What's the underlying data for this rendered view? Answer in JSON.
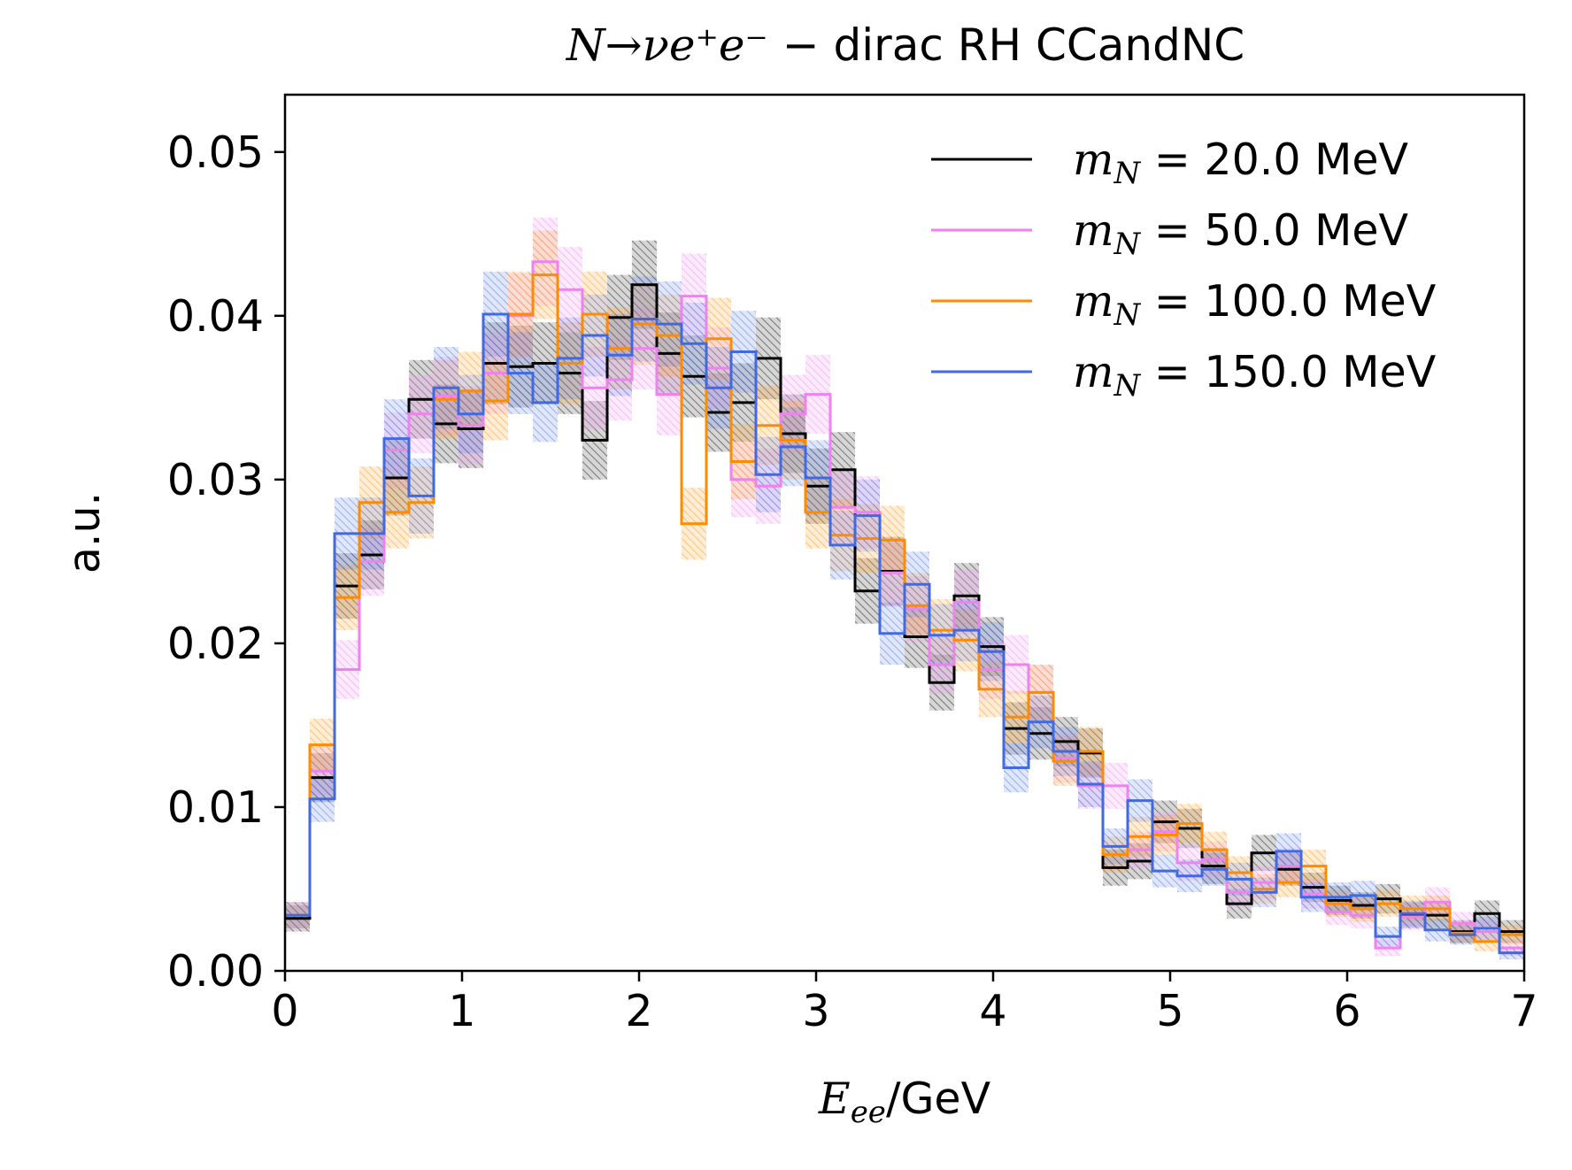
{
  "chart_data": {
    "type": "histogram-step",
    "title": {
      "math_part": "N→νe⁺e⁻",
      "text_part": " − dirac RH CCandNC"
    },
    "xlabel": {
      "math": "E",
      "sub": "ee",
      "rest": "/GeV"
    },
    "ylabel": "a.u.",
    "xlim": [
      0,
      7
    ],
    "ylim": [
      0,
      0.0535
    ],
    "xticks": [
      0,
      1,
      2,
      3,
      4,
      5,
      6,
      7
    ],
    "xtick_labels": [
      "0",
      "1",
      "2",
      "3",
      "4",
      "5",
      "6",
      "7"
    ],
    "yticks": [
      0.0,
      0.01,
      0.02,
      0.03,
      0.04,
      0.05
    ],
    "ytick_labels": [
      "0.00",
      "0.01",
      "0.02",
      "0.03",
      "0.04",
      "0.05"
    ],
    "bin_edges": [
      0.0,
      0.14,
      0.28,
      0.42,
      0.56,
      0.7,
      0.84,
      0.98,
      1.12,
      1.26,
      1.4,
      1.54,
      1.68,
      1.82,
      1.96,
      2.1,
      2.24,
      2.38,
      2.52,
      2.66,
      2.8,
      2.94,
      3.08,
      3.22,
      3.36,
      3.5,
      3.64,
      3.78,
      3.92,
      4.06,
      4.2,
      4.34,
      4.48,
      4.62,
      4.76,
      4.9,
      5.04,
      5.18,
      5.32,
      5.46,
      5.6,
      5.74,
      5.88,
      6.02,
      6.16,
      6.3,
      6.44,
      6.58,
      6.72,
      6.86,
      7.0
    ],
    "legend_position": "top-right",
    "series": [
      {
        "name_math": "m",
        "name_sub": "N",
        "name_rest": " = 20.0 MeV",
        "color": "#000000",
        "values": [
          0.0032,
          0.0118,
          0.0235,
          0.0254,
          0.0301,
          0.0349,
          0.0334,
          0.0331,
          0.0371,
          0.0369,
          0.0371,
          0.0365,
          0.0324,
          0.0399,
          0.0419,
          0.0377,
          0.0363,
          0.0341,
          0.0347,
          0.0374,
          0.0328,
          0.0296,
          0.0306,
          0.0232,
          0.0244,
          0.0204,
          0.0176,
          0.0229,
          0.0198,
          0.0148,
          0.0145,
          0.014,
          0.0133,
          0.0063,
          0.0067,
          0.0091,
          0.0087,
          0.0064,
          0.0041,
          0.0072,
          0.0062,
          0.0051,
          0.0043,
          0.004,
          0.0044,
          0.0034,
          0.0034,
          0.0024,
          0.0035,
          0.0024
        ],
        "errors": [
          0.0008,
          0.0015,
          0.002,
          0.0021,
          0.0023,
          0.0024,
          0.0024,
          0.0024,
          0.0025,
          0.0025,
          0.0025,
          0.0025,
          0.0024,
          0.0026,
          0.0027,
          0.0025,
          0.0025,
          0.0024,
          0.0024,
          0.0025,
          0.0024,
          0.0023,
          0.0023,
          0.002,
          0.0021,
          0.0019,
          0.0017,
          0.002,
          0.0018,
          0.0016,
          0.0016,
          0.0015,
          0.0015,
          0.0011,
          0.0011,
          0.0013,
          0.0012,
          0.0011,
          0.0009,
          0.0011,
          0.001,
          0.0009,
          0.0009,
          0.0008,
          0.0009,
          0.0008,
          0.0008,
          0.0007,
          0.0008,
          0.0007
        ]
      },
      {
        "name_math": "m",
        "name_sub": "N",
        "name_rest": " = 50.0 MeV",
        "color": "#ee82ee",
        "values": [
          0.0034,
          0.0122,
          0.0184,
          0.025,
          0.0318,
          0.034,
          0.0351,
          0.0333,
          0.0365,
          0.04,
          0.0433,
          0.0416,
          0.0356,
          0.0361,
          0.038,
          0.0352,
          0.0412,
          0.0368,
          0.03,
          0.0296,
          0.034,
          0.0352,
          0.0283,
          0.028,
          0.0243,
          0.0221,
          0.0187,
          0.0225,
          0.0184,
          0.0187,
          0.017,
          0.013,
          0.0113,
          0.0113,
          0.0074,
          0.0085,
          0.0066,
          0.0068,
          0.0048,
          0.0054,
          0.0064,
          0.0047,
          0.0036,
          0.0034,
          0.0014,
          0.0033,
          0.0042,
          0.0029,
          0.0024,
          0.0014
        ],
        "errors": [
          0.0008,
          0.0015,
          0.0018,
          0.0021,
          0.0023,
          0.0024,
          0.0024,
          0.0024,
          0.0025,
          0.0026,
          0.0027,
          0.0026,
          0.0025,
          0.0025,
          0.0025,
          0.0025,
          0.0026,
          0.0025,
          0.0023,
          0.0023,
          0.0024,
          0.0024,
          0.0022,
          0.0022,
          0.0021,
          0.002,
          0.0018,
          0.002,
          0.0018,
          0.0018,
          0.0017,
          0.0015,
          0.0014,
          0.0014,
          0.0011,
          0.0012,
          0.0011,
          0.0011,
          0.0009,
          0.001,
          0.0011,
          0.0009,
          0.0008,
          0.0008,
          0.0005,
          0.0008,
          0.0009,
          0.0007,
          0.0007,
          0.0005
        ]
      },
      {
        "name_math": "m",
        "name_sub": "N",
        "name_rest": " = 100.0 MeV",
        "color": "#ff8c00",
        "values": [
          0.0034,
          0.0138,
          0.0228,
          0.0286,
          0.028,
          0.0286,
          0.0349,
          0.0354,
          0.0348,
          0.0401,
          0.0425,
          0.0371,
          0.0401,
          0.038,
          0.0395,
          0.0388,
          0.0273,
          0.0386,
          0.0311,
          0.0333,
          0.0324,
          0.028,
          0.0266,
          0.0264,
          0.0263,
          0.0223,
          0.0208,
          0.0202,
          0.0172,
          0.0155,
          0.017,
          0.0128,
          0.0134,
          0.0071,
          0.0082,
          0.0083,
          0.009,
          0.0074,
          0.006,
          0.005,
          0.0054,
          0.0064,
          0.0041,
          0.0038,
          0.0041,
          0.0038,
          0.0038,
          0.0023,
          0.0018,
          0.0022
        ],
        "errors": [
          0.0008,
          0.0016,
          0.002,
          0.0022,
          0.0022,
          0.0022,
          0.0024,
          0.0024,
          0.0024,
          0.0026,
          0.0027,
          0.0025,
          0.0026,
          0.0025,
          0.0025,
          0.0025,
          0.0022,
          0.0025,
          0.0023,
          0.0024,
          0.0024,
          0.0022,
          0.0022,
          0.0021,
          0.0021,
          0.002,
          0.0019,
          0.0019,
          0.0017,
          0.0016,
          0.0017,
          0.0015,
          0.0015,
          0.0011,
          0.0012,
          0.0012,
          0.0012,
          0.0011,
          0.001,
          0.0009,
          0.0009,
          0.001,
          0.0008,
          0.0008,
          0.0008,
          0.0008,
          0.0008,
          0.0006,
          0.0006,
          0.0006
        ]
      },
      {
        "name_math": "m",
        "name_sub": "N",
        "name_rest": " = 150.0 MeV",
        "color": "#4169e1",
        "values": [
          0.0034,
          0.0105,
          0.0267,
          0.0267,
          0.0325,
          0.029,
          0.0356,
          0.034,
          0.0401,
          0.0365,
          0.0347,
          0.0374,
          0.0388,
          0.0376,
          0.0398,
          0.0395,
          0.0383,
          0.0356,
          0.0378,
          0.0303,
          0.032,
          0.0301,
          0.026,
          0.0278,
          0.0206,
          0.0236,
          0.0205,
          0.0208,
          0.0195,
          0.0124,
          0.0152,
          0.0134,
          0.0114,
          0.0076,
          0.0104,
          0.0061,
          0.0058,
          0.0062,
          0.0056,
          0.0048,
          0.0073,
          0.0045,
          0.0045,
          0.0046,
          0.0021,
          0.0035,
          0.0025,
          0.0022,
          0.0026,
          0.0011
        ],
        "errors": [
          0.0008,
          0.0014,
          0.0022,
          0.0022,
          0.0024,
          0.0023,
          0.0025,
          0.0024,
          0.0026,
          0.0025,
          0.0024,
          0.0025,
          0.0025,
          0.0025,
          0.0026,
          0.0026,
          0.0025,
          0.0025,
          0.0025,
          0.0023,
          0.0024,
          0.0023,
          0.0021,
          0.0022,
          0.0019,
          0.002,
          0.0019,
          0.0019,
          0.0018,
          0.0015,
          0.0016,
          0.0015,
          0.0014,
          0.0011,
          0.0013,
          0.001,
          0.001,
          0.001,
          0.001,
          0.0009,
          0.0011,
          0.0009,
          0.0009,
          0.0009,
          0.0006,
          0.0008,
          0.0007,
          0.0006,
          0.0007,
          0.0004
        ]
      }
    ]
  }
}
